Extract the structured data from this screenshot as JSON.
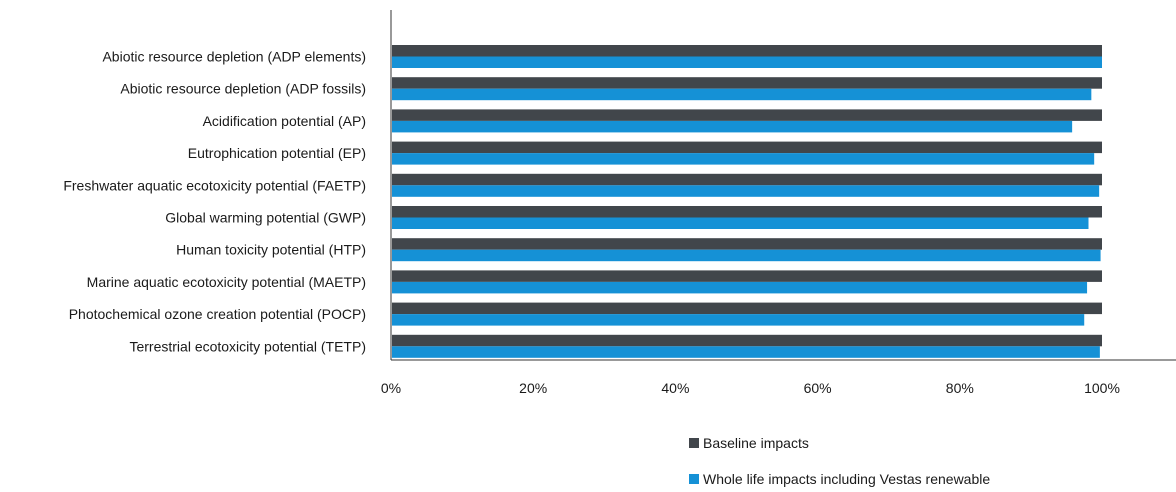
{
  "chart_data": {
    "type": "bar",
    "orientation": "horizontal",
    "title": "",
    "xlabel": "",
    "ylabel": "",
    "xlim": [
      0,
      100
    ],
    "x_ticks": [
      0,
      20,
      40,
      60,
      80,
      100
    ],
    "x_tick_labels": [
      "0%",
      "20%",
      "40%",
      "60%",
      "80%",
      "100%"
    ],
    "grid": false,
    "legend_position": "bottom-right",
    "categories": [
      "Abiotic resource depletion (ADP elements)",
      "Abiotic resource depletion (ADP fossils)",
      "Acidification potential (AP)",
      "Eutrophication potential (EP)",
      "Freshwater aquatic ecotoxicity potential (FAETP)",
      "Global warming potential (GWP)",
      "Human toxicity potential (HTP)",
      "Marine aquatic ecotoxicity potential (MAETP)",
      "Photochemical ozone creation potential (POCP)",
      "Terrestrial ecotoxicity potential (TETP)"
    ],
    "series": [
      {
        "name": "Baseline impacts",
        "color": "#41464b",
        "values": [
          100,
          100,
          100,
          100,
          100,
          100,
          100,
          100,
          100,
          100
        ]
      },
      {
        "name": "Whole life impacts including Vestas renewable",
        "color": "#1591d6",
        "values": [
          100,
          98.5,
          95.8,
          98.9,
          99.6,
          98.1,
          99.8,
          97.9,
          97.5,
          99.7
        ]
      }
    ]
  }
}
